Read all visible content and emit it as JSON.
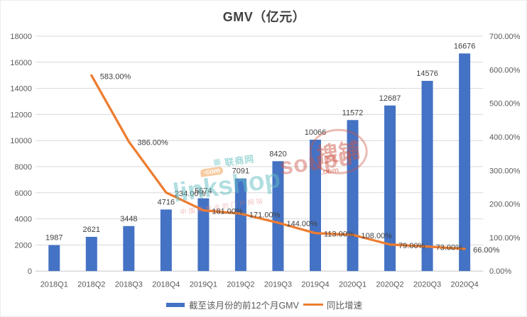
{
  "chart_data": {
    "type": "bar",
    "title": "GMV（亿元）",
    "categories": [
      "2018Q1",
      "2018Q2",
      "2018Q3",
      "2018Q4",
      "2019Q1",
      "2019Q2",
      "2019Q3",
      "2019Q4",
      "2020Q1",
      "2020Q2",
      "2020Q3",
      "2020Q4"
    ],
    "series": [
      {
        "name": "截至该月份的前12个月GMV",
        "type": "bar",
        "axis": "left",
        "color": "#4472C4",
        "values": [
          1987,
          2621,
          3448,
          4716,
          5574,
          7091,
          8420,
          10066,
          11572,
          12687,
          14576,
          16676
        ],
        "labels": [
          "1987",
          "2621",
          "3448",
          "4716",
          "5574",
          "7091",
          "8420",
          "10066",
          "11572",
          "12687",
          "14576",
          "16676"
        ]
      },
      {
        "name": "同比增速",
        "type": "line",
        "axis": "right",
        "color": "#ED7D31",
        "values": [
          null,
          583,
          386,
          234,
          181,
          171,
          144,
          113,
          108,
          79,
          73,
          66
        ],
        "labels": [
          null,
          "583.00%",
          "386.00%",
          "234.00%",
          "181.00%",
          "171.00%",
          "144.00%",
          "113.00%",
          "108.00%",
          "79.00%",
          "73.00%",
          "66.00%"
        ]
      }
    ],
    "left_axis": {
      "min": 0,
      "max": 18000,
      "step": 2000,
      "ticks": [
        "0",
        "2000",
        "4000",
        "6000",
        "8000",
        "10000",
        "12000",
        "14000",
        "16000",
        "18000"
      ]
    },
    "right_axis": {
      "min": 0,
      "max": 700,
      "step": 100,
      "ticks": [
        "0.00%",
        "100.00%",
        "200.00%",
        "300.00%",
        "400.00%",
        "500.00%",
        "600.00%",
        "700.00%"
      ]
    },
    "grid": true,
    "legend_position": "bottom"
  },
  "colors": {
    "bar": "#4472C4",
    "line": "#ED7D31",
    "gridline": "#D9D9D9",
    "axis_line": "#C6C6C6",
    "axis_text": "#595959",
    "data_label": "#404040",
    "title_text": "#404040"
  },
  "watermarks": {
    "linkshop": {
      "cn": "联商网",
      "grid_icon": "▦",
      "badge": "·com",
      "main": "linkshop",
      "slogan": "中国最专业的门户网站"
    },
    "soupu": {
      "main": "soupu",
      "com": ".com",
      "cn": "搜铺"
    }
  }
}
